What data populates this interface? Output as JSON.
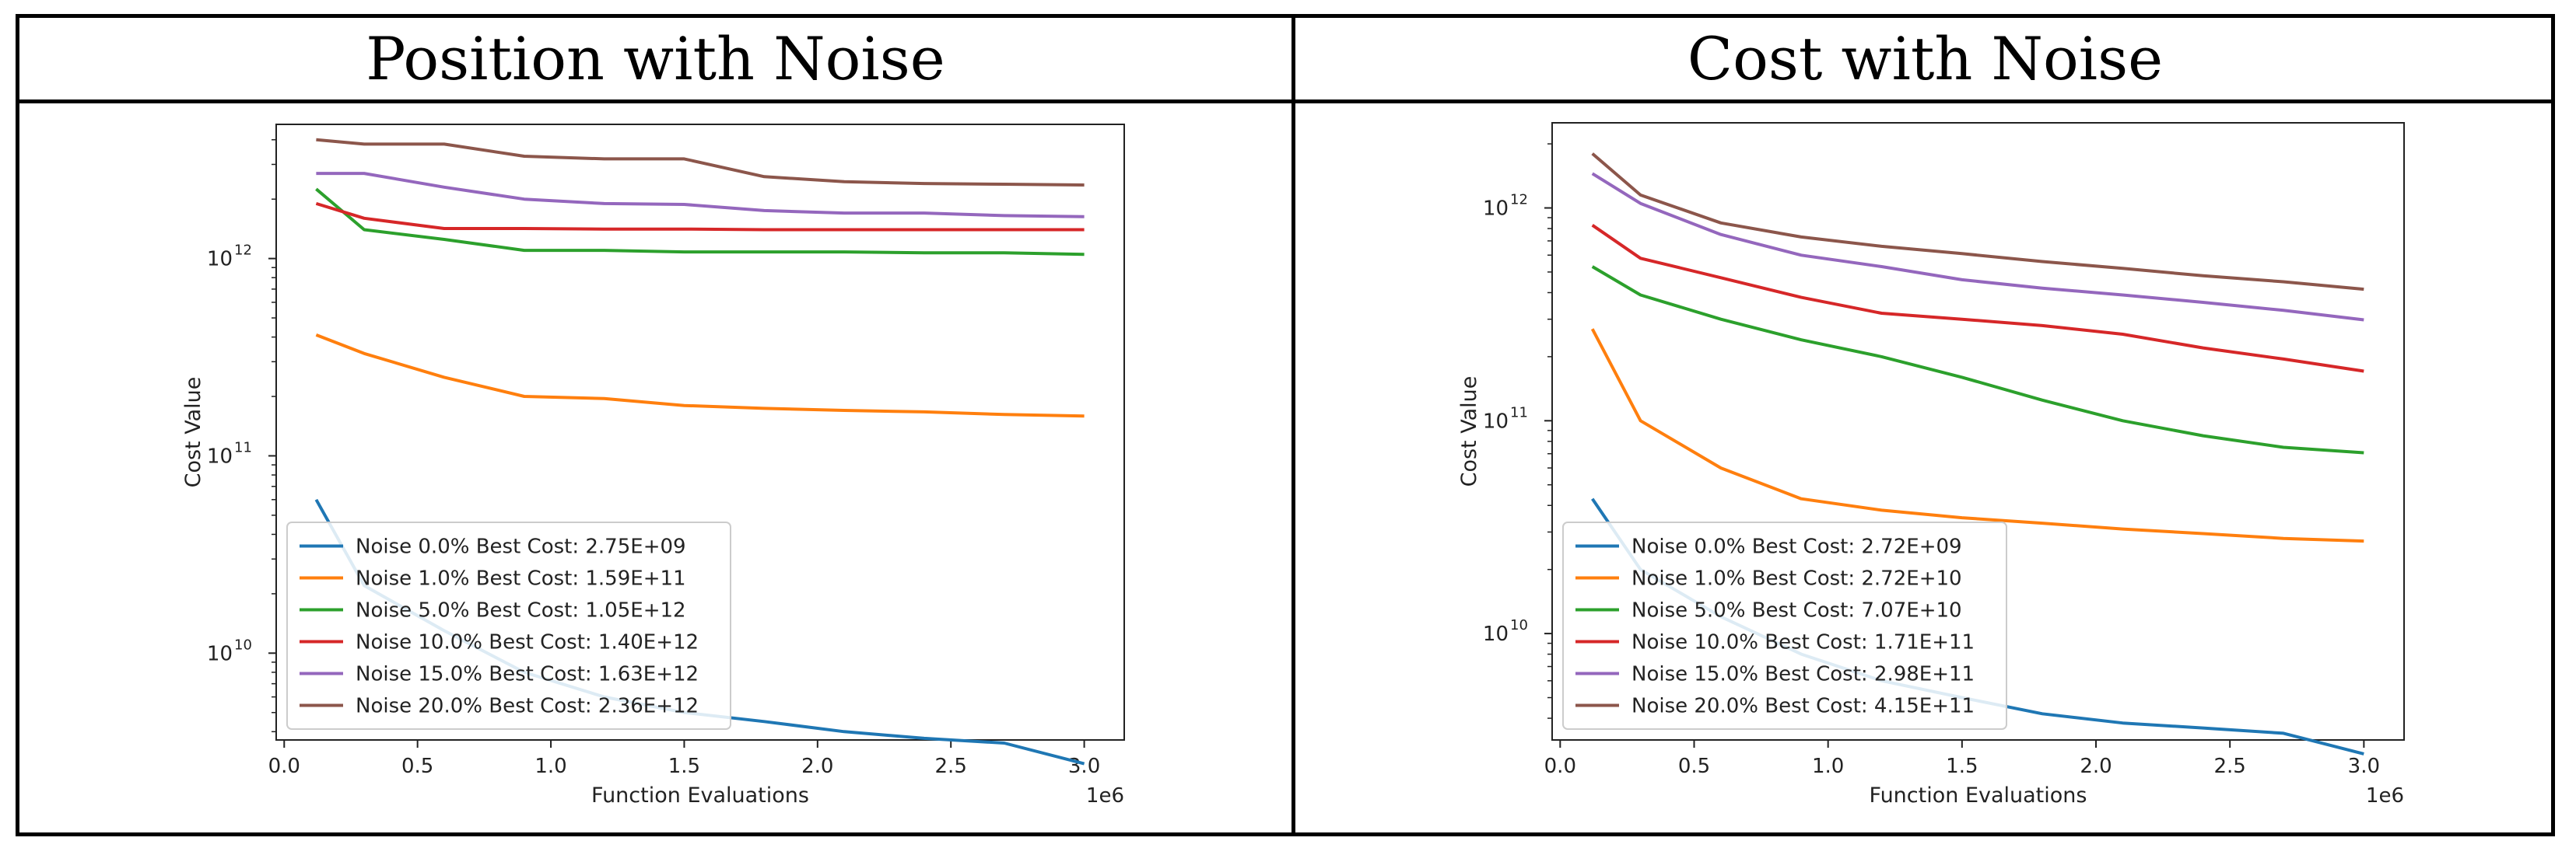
{
  "headers": {
    "left": "Position with Noise",
    "right": "Cost with Noise"
  },
  "chart_data": [
    {
      "type": "line",
      "title": "Position with Noise",
      "xlabel": "Function Evaluations",
      "ylabel": "Cost Value",
      "x_multiplier": "1e6",
      "yscale": "log",
      "xlim": [
        -0.03,
        3.15
      ],
      "ylim_log10": [
        9.56,
        12.68
      ],
      "xticks": [
        0.0,
        0.5,
        1.0,
        1.5,
        2.0,
        2.5,
        3.0
      ],
      "xtick_labels": [
        "0.0",
        "0.5",
        "1.0",
        "1.5",
        "2.0",
        "2.5",
        "3.0"
      ],
      "yticks": [
        {
          "value": 10000000000.0,
          "base": "10",
          "exp": "10"
        },
        {
          "value": 100000000000.0,
          "base": "10",
          "exp": "11"
        },
        {
          "value": 1000000000000.0,
          "base": "10",
          "exp": "12"
        }
      ],
      "legend": "lower-left",
      "series": [
        {
          "name": "Noise  0.0% Best Cost: 2.75E+09",
          "color": "#1f77b4",
          "x": [
            0.12,
            0.3,
            0.6,
            0.9,
            1.2,
            1.5,
            1.8,
            2.1,
            2.4,
            2.7,
            3.0
          ],
          "y": [
            60000000000.0,
            22000000000.0,
            13000000000.0,
            8000000000.0,
            6000000000.0,
            5000000000.0,
            4500000000.0,
            4000000000.0,
            3700000000.0,
            3500000000.0,
            2750000000.0
          ]
        },
        {
          "name": "Noise  1.0% Best Cost: 1.59E+11",
          "color": "#ff7f0e",
          "x": [
            0.12,
            0.3,
            0.6,
            0.9,
            1.2,
            1.5,
            1.8,
            2.1,
            2.4,
            2.7,
            3.0
          ],
          "y": [
            410000000000.0,
            330000000000.0,
            250000000000.0,
            200000000000.0,
            195000000000.0,
            180000000000.0,
            174000000000.0,
            170000000000.0,
            167000000000.0,
            162000000000.0,
            159000000000.0
          ]
        },
        {
          "name": "Noise  5.0% Best Cost: 1.05E+12",
          "color": "#2ca02c",
          "x": [
            0.12,
            0.3,
            0.6,
            0.9,
            1.2,
            1.5,
            1.8,
            2.1,
            2.4,
            2.7,
            3.0
          ],
          "y": [
            2250000000000.0,
            1400000000000.0,
            1250000000000.0,
            1100000000000.0,
            1100000000000.0,
            1080000000000.0,
            1080000000000.0,
            1080000000000.0,
            1070000000000.0,
            1070000000000.0,
            1050000000000.0
          ]
        },
        {
          "name": "Noise  10.0% Best Cost: 1.40E+12",
          "color": "#d62728",
          "x": [
            0.12,
            0.3,
            0.6,
            0.9,
            1.2,
            1.5,
            1.8,
            2.1,
            2.4,
            2.7,
            3.0
          ],
          "y": [
            1900000000000.0,
            1600000000000.0,
            1420000000000.0,
            1420000000000.0,
            1410000000000.0,
            1410000000000.0,
            1400000000000.0,
            1400000000000.0,
            1400000000000.0,
            1400000000000.0,
            1400000000000.0
          ]
        },
        {
          "name": "Noise  15.0% Best Cost: 1.63E+12",
          "color": "#9467bd",
          "x": [
            0.12,
            0.3,
            0.6,
            0.9,
            1.2,
            1.5,
            1.8,
            2.1,
            2.4,
            2.7,
            3.0
          ],
          "y": [
            2700000000000.0,
            2700000000000.0,
            2300000000000.0,
            2000000000000.0,
            1900000000000.0,
            1880000000000.0,
            1750000000000.0,
            1700000000000.0,
            1700000000000.0,
            1650000000000.0,
            1630000000000.0
          ]
        },
        {
          "name": "Noise  20.0% Best Cost: 2.36E+12",
          "color": "#8c564b",
          "x": [
            0.12,
            0.3,
            0.6,
            0.9,
            1.2,
            1.5,
            1.8,
            2.1,
            2.4,
            2.7,
            3.0
          ],
          "y": [
            4000000000000.0,
            3800000000000.0,
            3800000000000.0,
            3300000000000.0,
            3200000000000.0,
            3200000000000.0,
            2600000000000.0,
            2450000000000.0,
            2400000000000.0,
            2380000000000.0,
            2360000000000.0
          ]
        }
      ]
    },
    {
      "type": "line",
      "title": "Cost with Noise",
      "xlabel": "Function Evaluations",
      "ylabel": "Cost Value",
      "x_multiplier": "1e6",
      "yscale": "log",
      "xlim": [
        -0.03,
        3.15
      ],
      "ylim_log10": [
        9.5,
        12.4
      ],
      "xticks": [
        0.0,
        0.5,
        1.0,
        1.5,
        2.0,
        2.5,
        3.0
      ],
      "xtick_labels": [
        "0.0",
        "0.5",
        "1.0",
        "1.5",
        "2.0",
        "2.5",
        "3.0"
      ],
      "yticks": [
        {
          "value": 10000000000.0,
          "base": "10",
          "exp": "10"
        },
        {
          "value": 100000000000.0,
          "base": "10",
          "exp": "11"
        },
        {
          "value": 1000000000000.0,
          "base": "10",
          "exp": "12"
        }
      ],
      "legend": "lower-left",
      "series": [
        {
          "name": "Noise  0.0% Best Cost: 2.72E+09",
          "color": "#1f77b4",
          "x": [
            0.12,
            0.3,
            0.6,
            0.9,
            1.2,
            1.5,
            1.8,
            2.1,
            2.4,
            2.7,
            3.0
          ],
          "y": [
            43000000000.0,
            20000000000.0,
            12000000000.0,
            8000000000.0,
            6000000000.0,
            5000000000.0,
            4200000000.0,
            3800000000.0,
            3600000000.0,
            3400000000.0,
            2720000000.0
          ]
        },
        {
          "name": "Noise  1.0% Best Cost: 2.72E+10",
          "color": "#ff7f0e",
          "x": [
            0.12,
            0.3,
            0.6,
            0.9,
            1.2,
            1.5,
            1.8,
            2.1,
            2.4,
            2.7,
            3.0
          ],
          "y": [
            270000000000.0,
            100000000000.0,
            60000000000.0,
            43000000000.0,
            38000000000.0,
            35000000000.0,
            33000000000.0,
            31000000000.0,
            29500000000.0,
            28000000000.0,
            27200000000.0
          ]
        },
        {
          "name": "Noise  5.0% Best Cost: 7.07E+10",
          "color": "#2ca02c",
          "x": [
            0.12,
            0.3,
            0.6,
            0.9,
            1.2,
            1.5,
            1.8,
            2.1,
            2.4,
            2.7,
            3.0
          ],
          "y": [
            530000000000.0,
            390000000000.0,
            300000000000.0,
            240000000000.0,
            200000000000.0,
            160000000000.0,
            125000000000.0,
            100000000000.0,
            85000000000.0,
            75000000000.0,
            70700000000.0
          ]
        },
        {
          "name": "Noise  10.0% Best Cost: 1.71E+11",
          "color": "#d62728",
          "x": [
            0.12,
            0.3,
            0.6,
            0.9,
            1.2,
            1.5,
            1.8,
            2.1,
            2.4,
            2.7,
            3.0
          ],
          "y": [
            830000000000.0,
            580000000000.0,
            470000000000.0,
            380000000000.0,
            320000000000.0,
            300000000000.0,
            280000000000.0,
            255000000000.0,
            220000000000.0,
            195000000000.0,
            171000000000.0
          ]
        },
        {
          "name": "Noise  15.0% Best Cost: 2.98E+11",
          "color": "#9467bd",
          "x": [
            0.12,
            0.3,
            0.6,
            0.9,
            1.2,
            1.5,
            1.8,
            2.1,
            2.4,
            2.7,
            3.0
          ],
          "y": [
            1450000000000.0,
            1050000000000.0,
            750000000000.0,
            600000000000.0,
            530000000000.0,
            460000000000.0,
            420000000000.0,
            390000000000.0,
            360000000000.0,
            330000000000.0,
            298000000000.0
          ]
        },
        {
          "name": "Noise  20.0% Best Cost: 4.15E+11",
          "color": "#8c564b",
          "x": [
            0.12,
            0.3,
            0.6,
            0.9,
            1.2,
            1.5,
            1.8,
            2.1,
            2.4,
            2.7,
            3.0
          ],
          "y": [
            1800000000000.0,
            1150000000000.0,
            850000000000.0,
            730000000000.0,
            660000000000.0,
            610000000000.0,
            560000000000.0,
            520000000000.0,
            480000000000.0,
            450000000000.0,
            415000000000.0
          ]
        }
      ]
    }
  ]
}
